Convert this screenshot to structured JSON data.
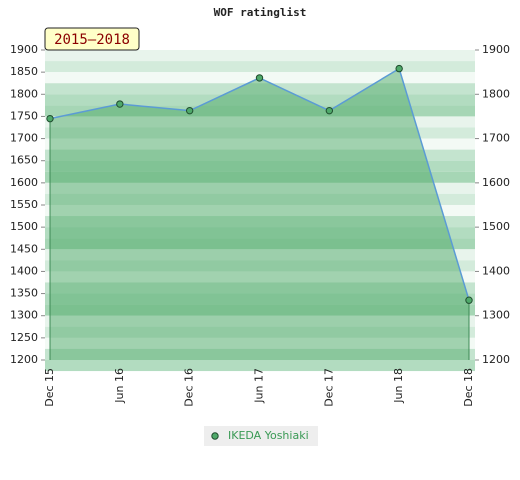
{
  "chart_data": {
    "type": "line",
    "title": "WOF ratinglist",
    "annotation": "2015–2018",
    "categories": [
      "Dec 15",
      "Jun 16",
      "Dec 16",
      "Jun 17",
      "Dec 17",
      "Jun 18",
      "Dec 18"
    ],
    "series": [
      {
        "name": "IKEDA Yoshiaki",
        "color": "#4fa96a",
        "line_color": "#5b9bd5",
        "values": [
          1745,
          1778,
          1763,
          1837,
          1763,
          1858,
          1335
        ]
      }
    ],
    "ylim": [
      1200,
      1900
    ],
    "yticks": [
      1200,
      1250,
      1300,
      1350,
      1400,
      1450,
      1500,
      1550,
      1600,
      1650,
      1700,
      1750,
      1800,
      1850,
      1900
    ],
    "y2lim": [
      1200,
      1900
    ],
    "y2ticks": [
      1200,
      1300,
      1400,
      1500,
      1600,
      1700,
      1800,
      1900
    ],
    "legend": "bottom"
  }
}
